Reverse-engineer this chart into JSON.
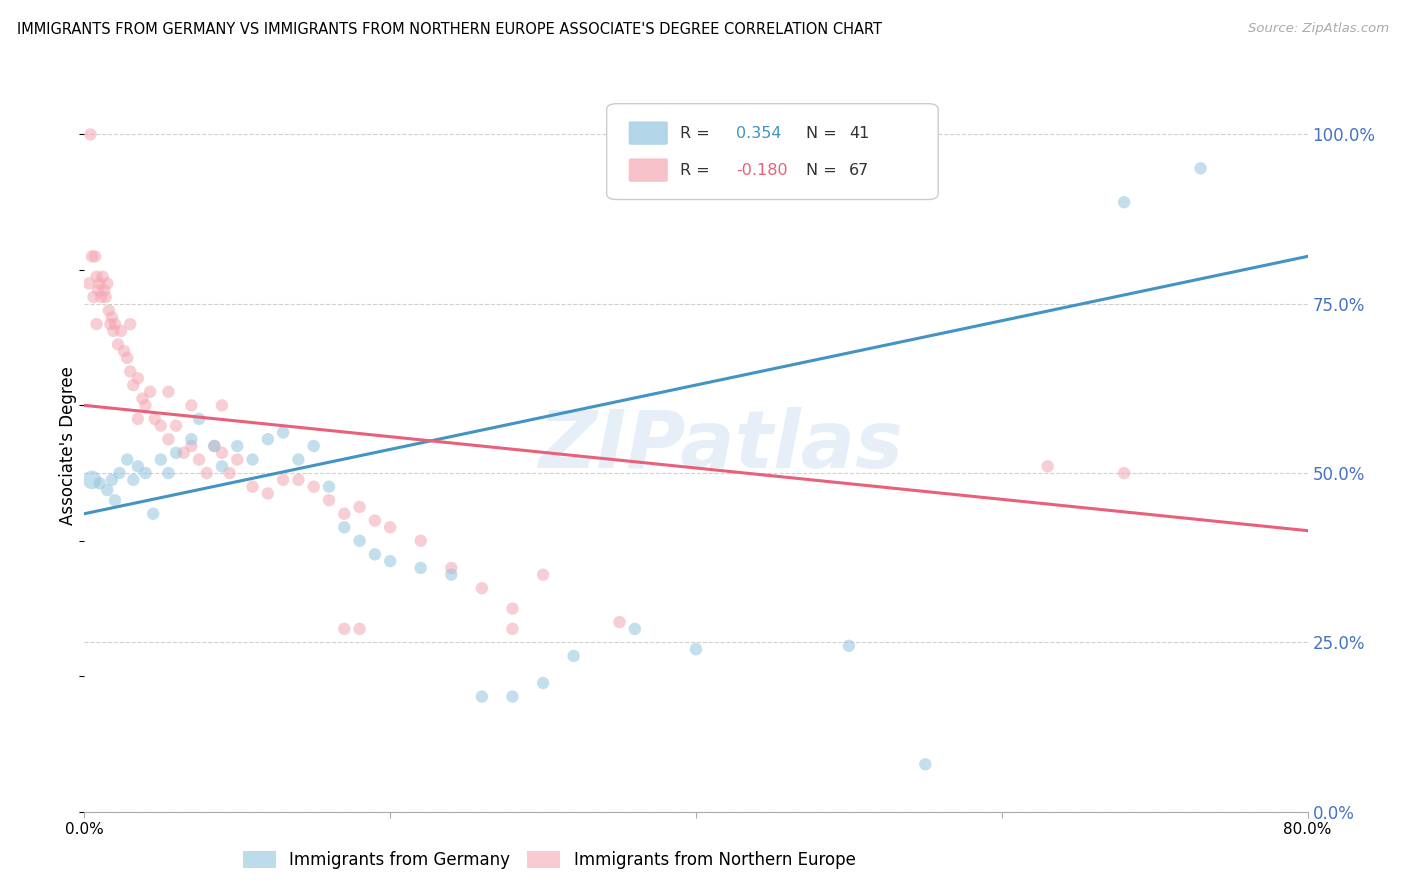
{
  "title": "IMMIGRANTS FROM GERMANY VS IMMIGRANTS FROM NORTHERN EUROPE ASSOCIATE'S DEGREE CORRELATION CHART",
  "source": "Source: ZipAtlas.com",
  "ylabel": "Associate's Degree",
  "legend_blue_r": "R =",
  "legend_blue_r2": "0.354",
  "legend_blue_n": "N =",
  "legend_blue_n2": "41",
  "legend_pink_r": "R =",
  "legend_pink_r2": "-0.180",
  "legend_pink_n": "N =",
  "legend_pink_n2": "67",
  "watermark": "ZIPatlas",
  "blue_color": "#92c5de",
  "pink_color": "#f4a7b3",
  "blue_line_color": "#4393c3",
  "pink_line_color": "#e8607a",
  "blue_scatter": [
    [
      0.5,
      49.0
    ],
    [
      1.0,
      48.5
    ],
    [
      1.5,
      47.5
    ],
    [
      1.8,
      49.0
    ],
    [
      2.0,
      46.0
    ],
    [
      2.3,
      50.0
    ],
    [
      2.8,
      52.0
    ],
    [
      3.2,
      49.0
    ],
    [
      3.5,
      51.0
    ],
    [
      4.0,
      50.0
    ],
    [
      4.5,
      44.0
    ],
    [
      5.0,
      52.0
    ],
    [
      5.5,
      50.0
    ],
    [
      6.0,
      53.0
    ],
    [
      7.0,
      55.0
    ],
    [
      7.5,
      58.0
    ],
    [
      8.5,
      54.0
    ],
    [
      9.0,
      51.0
    ],
    [
      10.0,
      54.0
    ],
    [
      11.0,
      52.0
    ],
    [
      12.0,
      55.0
    ],
    [
      13.0,
      56.0
    ],
    [
      14.0,
      52.0
    ],
    [
      15.0,
      54.0
    ],
    [
      16.0,
      48.0
    ],
    [
      17.0,
      42.0
    ],
    [
      18.0,
      40.0
    ],
    [
      19.0,
      38.0
    ],
    [
      20.0,
      37.0
    ],
    [
      22.0,
      36.0
    ],
    [
      24.0,
      35.0
    ],
    [
      26.0,
      17.0
    ],
    [
      28.0,
      17.0
    ],
    [
      30.0,
      19.0
    ],
    [
      32.0,
      23.0
    ],
    [
      36.0,
      27.0
    ],
    [
      40.0,
      24.0
    ],
    [
      50.0,
      24.5
    ],
    [
      55.0,
      7.0
    ],
    [
      68.0,
      90.0
    ],
    [
      73.0,
      95.0
    ]
  ],
  "blue_sizes": [
    180,
    80,
    80,
    80,
    80,
    80,
    80,
    80,
    80,
    80,
    80,
    80,
    80,
    80,
    80,
    80,
    80,
    80,
    80,
    80,
    80,
    80,
    80,
    80,
    80,
    80,
    80,
    80,
    80,
    80,
    80,
    80,
    80,
    80,
    80,
    80,
    80,
    80,
    80,
    80,
    80
  ],
  "pink_scatter": [
    [
      0.3,
      78.0
    ],
    [
      0.5,
      82.0
    ],
    [
      0.6,
      76.0
    ],
    [
      0.7,
      82.0
    ],
    [
      0.8,
      79.0
    ],
    [
      0.9,
      77.0
    ],
    [
      1.0,
      78.0
    ],
    [
      1.1,
      76.0
    ],
    [
      1.2,
      79.0
    ],
    [
      1.3,
      77.0
    ],
    [
      1.4,
      76.0
    ],
    [
      1.5,
      78.0
    ],
    [
      1.6,
      74.0
    ],
    [
      1.7,
      72.0
    ],
    [
      1.8,
      73.0
    ],
    [
      1.9,
      71.0
    ],
    [
      2.0,
      72.0
    ],
    [
      2.2,
      69.0
    ],
    [
      2.4,
      71.0
    ],
    [
      2.6,
      68.0
    ],
    [
      2.8,
      67.0
    ],
    [
      3.0,
      65.0
    ],
    [
      3.2,
      63.0
    ],
    [
      3.5,
      64.0
    ],
    [
      3.8,
      61.0
    ],
    [
      4.0,
      60.0
    ],
    [
      4.3,
      62.0
    ],
    [
      4.6,
      58.0
    ],
    [
      5.0,
      57.0
    ],
    [
      5.5,
      55.0
    ],
    [
      6.0,
      57.0
    ],
    [
      6.5,
      53.0
    ],
    [
      7.0,
      54.0
    ],
    [
      7.5,
      52.0
    ],
    [
      8.0,
      50.0
    ],
    [
      8.5,
      54.0
    ],
    [
      9.0,
      53.0
    ],
    [
      9.5,
      50.0
    ],
    [
      10.0,
      52.0
    ],
    [
      11.0,
      48.0
    ],
    [
      12.0,
      47.0
    ],
    [
      13.0,
      49.0
    ],
    [
      14.0,
      49.0
    ],
    [
      15.0,
      48.0
    ],
    [
      16.0,
      46.0
    ],
    [
      17.0,
      44.0
    ],
    [
      18.0,
      45.0
    ],
    [
      19.0,
      43.0
    ],
    [
      20.0,
      42.0
    ],
    [
      22.0,
      40.0
    ],
    [
      24.0,
      36.0
    ],
    [
      26.0,
      33.0
    ],
    [
      28.0,
      30.0
    ],
    [
      30.0,
      35.0
    ],
    [
      0.4,
      100.0
    ],
    [
      0.8,
      72.0
    ],
    [
      3.0,
      72.0
    ],
    [
      3.5,
      58.0
    ],
    [
      5.5,
      62.0
    ],
    [
      7.0,
      60.0
    ],
    [
      9.0,
      60.0
    ],
    [
      17.0,
      27.0
    ],
    [
      18.0,
      27.0
    ],
    [
      28.0,
      27.0
    ],
    [
      35.0,
      28.0
    ],
    [
      63.0,
      51.0
    ],
    [
      68.0,
      50.0
    ]
  ],
  "pink_sizes": [
    80,
    80,
    80,
    80,
    80,
    80,
    80,
    80,
    80,
    80,
    80,
    80,
    80,
    80,
    80,
    80,
    80,
    80,
    80,
    80,
    80,
    80,
    80,
    80,
    80,
    80,
    80,
    80,
    80,
    80,
    80,
    80,
    80,
    80,
    80,
    80,
    80,
    80,
    80,
    80,
    80,
    80,
    80,
    80,
    80,
    80,
    80,
    80,
    80,
    80,
    80,
    80,
    80,
    80,
    80,
    80,
    80,
    80,
    80,
    80,
    80,
    80,
    80,
    80,
    80,
    80,
    80
  ],
  "blue_line_x": [
    0,
    80
  ],
  "blue_line_y": [
    44.0,
    82.0
  ],
  "pink_line_x": [
    0,
    80
  ],
  "pink_line_y": [
    60.0,
    41.5
  ],
  "xlim": [
    0,
    80
  ],
  "ylim": [
    0,
    108
  ],
  "yticks": [
    0,
    25,
    50,
    75,
    100
  ],
  "ytick_labels": [
    "0.0%",
    "25.0%",
    "50.0%",
    "75.0%",
    "100.0%"
  ],
  "xtick_positions": [
    0,
    20,
    40,
    60,
    80
  ],
  "grid_color": "#d0d0d0"
}
